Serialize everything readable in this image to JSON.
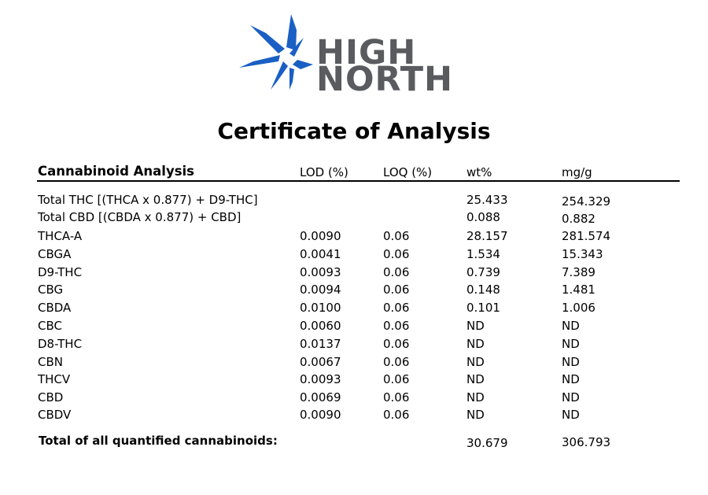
{
  "brand": {
    "line1": "HIGH",
    "line2": "NORTH",
    "leaf_color": "#1a5fc4",
    "text_color": "#595b5f"
  },
  "title": "Certificate of Analysis",
  "section": {
    "label": "Cannabinoid Analysis",
    "columns": {
      "lod": "LOD (%)",
      "loq": "LOQ (%)",
      "wt": "wt%",
      "mg": "mg/g"
    }
  },
  "summary_rows": [
    {
      "name": "Total THC [(THCA x 0.877) + D9-THC]",
      "wt": "25.433",
      "mg": "254.329"
    },
    {
      "name": "Total CBD [(CBDA x 0.877) + CBD]",
      "wt": "0.088",
      "mg": "0.882"
    }
  ],
  "rows": [
    {
      "name": "THCA-A",
      "lod": "0.0090",
      "loq": "0.06",
      "wt": "28.157",
      "mg": "281.574"
    },
    {
      "name": "CBGA",
      "lod": "0.0041",
      "loq": "0.06",
      "wt": "1.534",
      "mg": "15.343"
    },
    {
      "name": "D9-THC",
      "lod": "0.0093",
      "loq": "0.06",
      "wt": "0.739",
      "mg": "7.389"
    },
    {
      "name": "CBG",
      "lod": "0.0094",
      "loq": "0.06",
      "wt": "0.148",
      "mg": "1.481"
    },
    {
      "name": "CBDA",
      "lod": "0.0100",
      "loq": "0.06",
      "wt": "0.101",
      "mg": "1.006"
    },
    {
      "name": "CBC",
      "lod": "0.0060",
      "loq": "0.06",
      "wt": "ND",
      "mg": "ND"
    },
    {
      "name": "D8-THC",
      "lod": "0.0137",
      "loq": "0.06",
      "wt": "ND",
      "mg": "ND"
    },
    {
      "name": "CBN",
      "lod": "0.0067",
      "loq": "0.06",
      "wt": "ND",
      "mg": "ND"
    },
    {
      "name": "THCV",
      "lod": "0.0093",
      "loq": "0.06",
      "wt": "ND",
      "mg": "ND"
    },
    {
      "name": "CBD",
      "lod": "0.0069",
      "loq": "0.06",
      "wt": "ND",
      "mg": "ND"
    },
    {
      "name": "CBDV",
      "lod": "0.0090",
      "loq": "0.06",
      "wt": "ND",
      "mg": "ND"
    }
  ],
  "total": {
    "label": "Total of all quantified cannabinoids:",
    "wt": "30.679",
    "mg": "306.793"
  }
}
